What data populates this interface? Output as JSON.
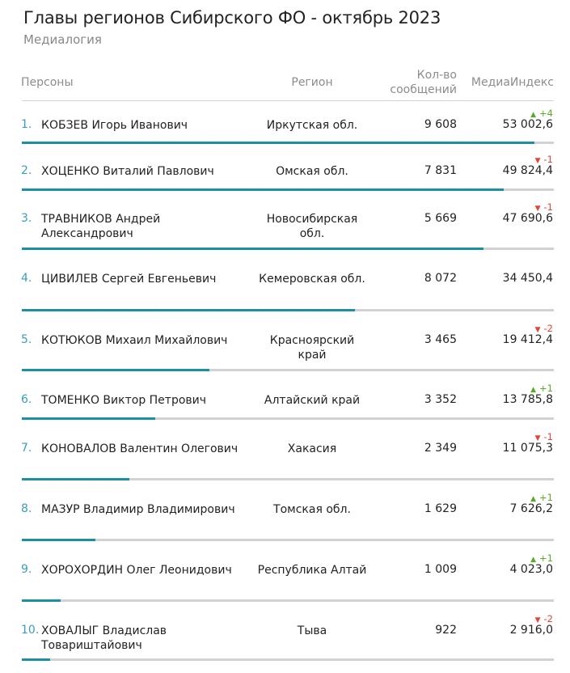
{
  "header": {
    "title": "Главы регионов Сибирского ФО - октябрь 2023",
    "subtitle": "Медиалогия"
  },
  "columns": {
    "persons": "Персоны",
    "region": "Регион",
    "count_line1": "Кол-во",
    "count_line2": "сообщений",
    "index": "МедиаИндекс"
  },
  "chart_data": {
    "type": "table",
    "bar_value": "index",
    "bar_max": 55000,
    "rows": [
      {
        "rank": "1.",
        "name": "КОБЗЕВ Игорь Иванович",
        "region": "Иркутская обл.",
        "count": "9 608",
        "index": "53 002,6",
        "index_value": 53002.6,
        "change": "+4",
        "direction": "up"
      },
      {
        "rank": "2.",
        "name": "ХОЦЕНКО Виталий Павлович",
        "region": "Омская обл.",
        "count": "7 831",
        "index": "49 824,4",
        "index_value": 49824.4,
        "change": "-1",
        "direction": "down"
      },
      {
        "rank": "3.",
        "name": "ТРАВНИКОВ Андрей Александрович",
        "region": "Новосибирская обл.",
        "count": "5 669",
        "index": "47 690,6",
        "index_value": 47690.6,
        "change": "-1",
        "direction": "down"
      },
      {
        "rank": "4.",
        "name": "ЦИВИЛЕВ Сергей Евгеньевич",
        "region": "Кемеровская обл.",
        "count": "8 072",
        "index": "34 450,4",
        "index_value": 34450.4,
        "change": "",
        "direction": ""
      },
      {
        "rank": "5.",
        "name": "КОТЮКОВ Михаил Михайлович",
        "region": "Красноярский край",
        "count": "3 465",
        "index": "19 412,4",
        "index_value": 19412.4,
        "change": "-2",
        "direction": "down"
      },
      {
        "rank": "6.",
        "name": "ТОМЕНКО Виктор Петрович",
        "region": "Алтайский край",
        "count": "3 352",
        "index": "13 785,8",
        "index_value": 13785.8,
        "change": "+1",
        "direction": "up"
      },
      {
        "rank": "7.",
        "name": "КОНОВАЛОВ Валентин Олегович",
        "region": "Хакасия",
        "count": "2 349",
        "index": "11 075,3",
        "index_value": 11075.3,
        "change": "-1",
        "direction": "down"
      },
      {
        "rank": "8.",
        "name": "МАЗУР Владимир Владимирович",
        "region": "Томская обл.",
        "count": "1 629",
        "index": "7 626,2",
        "index_value": 7626.2,
        "change": "+1",
        "direction": "up"
      },
      {
        "rank": "9.",
        "name": "ХОРОХОРДИН Олег Леонидович",
        "region": "Республика Алтай",
        "count": "1 009",
        "index": "4 023,0",
        "index_value": 4023.0,
        "change": "+1",
        "direction": "up"
      },
      {
        "rank": "10.",
        "name": "ХОВАЛЫГ Владислав Товариштайович",
        "region": "Тыва",
        "count": "922",
        "index": "2 916,0",
        "index_value": 2916.0,
        "change": "-2",
        "direction": "down"
      }
    ]
  },
  "colors": {
    "bar_fill": "#1d8fa3",
    "bar_track": "#cfd3d6",
    "up": "#5aa82a",
    "down": "#e0443a",
    "rank": "#3a9dbb"
  }
}
